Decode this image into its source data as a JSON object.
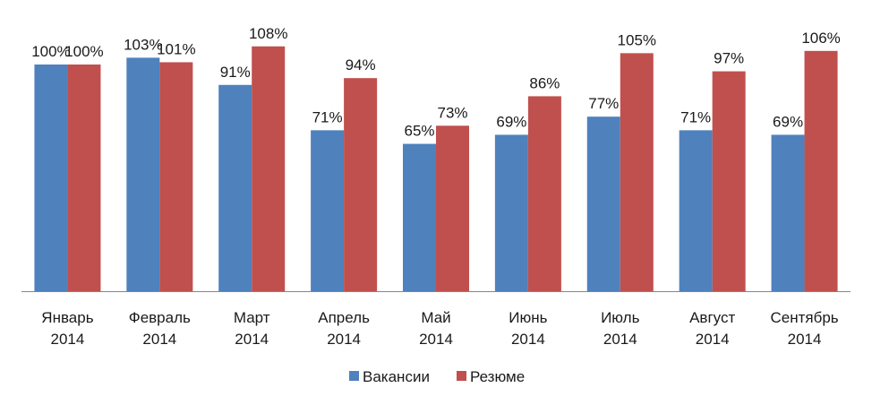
{
  "chart_data": {
    "type": "bar",
    "title": "",
    "xlabel": "",
    "ylabel": "",
    "ylim": [
      0,
      115
    ],
    "grid": false,
    "legend_position": "bottom",
    "categories": [
      [
        "Январь",
        "2014"
      ],
      [
        "Февраль",
        "2014"
      ],
      [
        "Март",
        "2014"
      ],
      [
        "Апрель",
        "2014"
      ],
      [
        "Май",
        "2014"
      ],
      [
        "Июнь",
        "2014"
      ],
      [
        "Июль",
        "2014"
      ],
      [
        "Август",
        "2014"
      ],
      [
        "Сентябрь",
        "2014"
      ]
    ],
    "series": [
      {
        "name": "Вакансии",
        "color": "#4f81bd",
        "values": [
          100,
          103,
          91,
          71,
          65,
          69,
          77,
          71,
          69
        ],
        "labels": [
          "100%",
          "103%",
          "91%",
          "71%",
          "65%",
          "69%",
          "77%",
          "71%",
          "69%"
        ]
      },
      {
        "name": "Резюме",
        "color": "#c0504d",
        "values": [
          100,
          101,
          108,
          94,
          73,
          86,
          105,
          97,
          106
        ],
        "labels": [
          "100%",
          "101%",
          "108%",
          "94%",
          "73%",
          "86%",
          "105%",
          "97%",
          "106%"
        ]
      }
    ]
  }
}
